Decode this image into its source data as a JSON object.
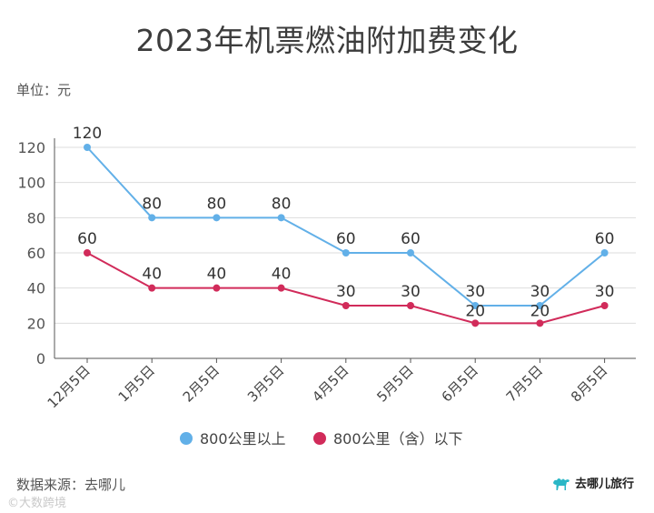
{
  "title": "2023年机票燃油附加费变化",
  "unit_label": "单位：元",
  "source": "数据来源：去哪儿",
  "watermark": "©大数跨境",
  "brand": {
    "name": "去哪儿旅行",
    "icon": "camel-icon"
  },
  "chart_data": {
    "type": "line",
    "title": "2023年机票燃油附加费变化",
    "categories": [
      "12月5日",
      "1月5日",
      "2月5日",
      "3月5日",
      "4月5日",
      "5月5日",
      "6月5日",
      "7月5日",
      "8月5日"
    ],
    "ylim": [
      0,
      120
    ],
    "yticks": [
      0,
      20,
      40,
      60,
      80,
      100,
      120
    ],
    "grid": true,
    "legend_position": "bottom",
    "series": [
      {
        "name": "800公里以上",
        "color": "#62b0e8",
        "values": [
          120,
          80,
          80,
          80,
          60,
          60,
          30,
          30,
          60
        ]
      },
      {
        "name": "800公里（含）以下",
        "color": "#d12b5a",
        "values": [
          60,
          40,
          40,
          40,
          30,
          30,
          20,
          20,
          30
        ]
      }
    ]
  }
}
